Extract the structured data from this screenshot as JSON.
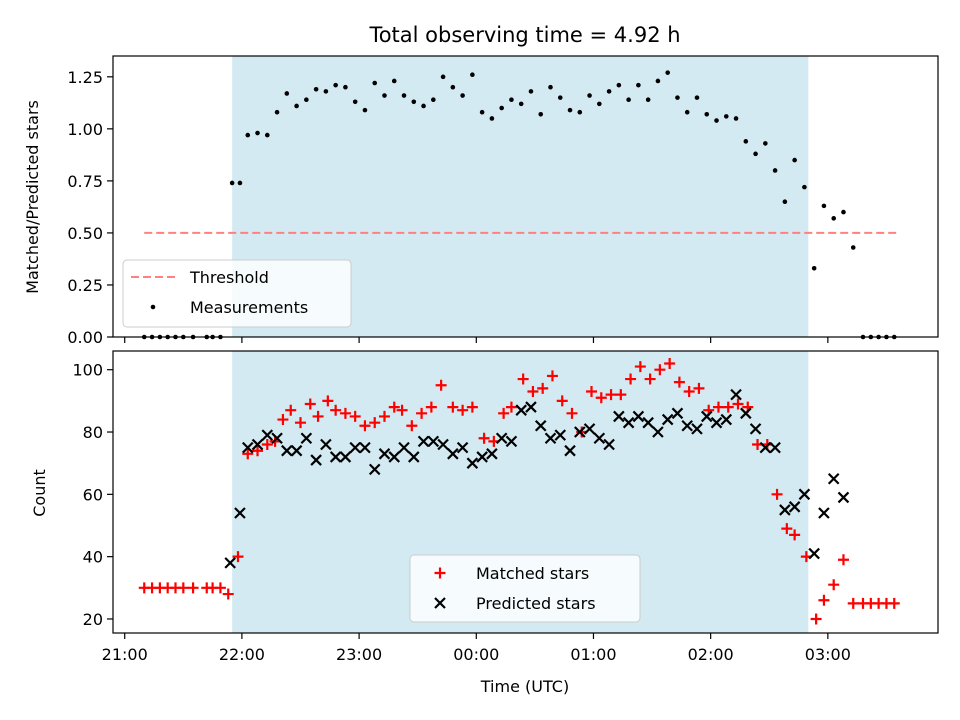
{
  "chart_data": [
    {
      "type": "scatter",
      "title": "Total observing time = 4.92 h",
      "xlabel": "",
      "ylabel": "Matched/Predicted stars",
      "ylim": [
        0,
        1.35
      ],
      "yticks": [
        "0.00",
        "0.25",
        "0.50",
        "0.75",
        "1.00",
        "1.25"
      ],
      "observing_window": [
        "21:55",
        "02:50"
      ],
      "shade_color": "#d3eaf2",
      "legend_position": "lower left",
      "threshold": {
        "name": "Threshold",
        "value": 0.5,
        "x_start": "21:10",
        "x_end": "03:35",
        "color": "#ff8080"
      },
      "series": [
        {
          "name": "Measurements",
          "color": "#000000",
          "points": [
            [
              "21:10",
              0.0
            ],
            [
              "21:14",
              0.0
            ],
            [
              "21:18",
              0.0
            ],
            [
              "21:22",
              0.0
            ],
            [
              "21:26",
              0.0
            ],
            [
              "21:30",
              0.0
            ],
            [
              "21:35",
              0.0
            ],
            [
              "21:42",
              0.0
            ],
            [
              "21:45",
              0.0
            ],
            [
              "21:49",
              0.0
            ],
            [
              "21:55",
              0.74
            ],
            [
              "21:59",
              0.74
            ],
            [
              "22:03",
              0.97
            ],
            [
              "22:08",
              0.98
            ],
            [
              "22:13",
              0.97
            ],
            [
              "22:18",
              1.08
            ],
            [
              "22:23",
              1.17
            ],
            [
              "22:28",
              1.11
            ],
            [
              "22:33",
              1.14
            ],
            [
              "22:38",
              1.19
            ],
            [
              "22:43",
              1.18
            ],
            [
              "22:48",
              1.21
            ],
            [
              "22:53",
              1.2
            ],
            [
              "22:58",
              1.13
            ],
            [
              "23:03",
              1.09
            ],
            [
              "23:08",
              1.22
            ],
            [
              "23:13",
              1.16
            ],
            [
              "23:18",
              1.23
            ],
            [
              "23:23",
              1.16
            ],
            [
              "23:28",
              1.13
            ],
            [
              "23:33",
              1.11
            ],
            [
              "23:38",
              1.14
            ],
            [
              "23:43",
              1.25
            ],
            [
              "23:48",
              1.2
            ],
            [
              "23:53",
              1.16
            ],
            [
              "23:58",
              1.26
            ],
            [
              "00:03",
              1.08
            ],
            [
              "00:08",
              1.05
            ],
            [
              "00:13",
              1.1
            ],
            [
              "00:18",
              1.14
            ],
            [
              "00:23",
              1.12
            ],
            [
              "00:28",
              1.18
            ],
            [
              "00:33",
              1.07
            ],
            [
              "00:38",
              1.2
            ],
            [
              "00:43",
              1.15
            ],
            [
              "00:48",
              1.09
            ],
            [
              "00:53",
              1.08
            ],
            [
              "00:58",
              1.16
            ],
            [
              "01:03",
              1.12
            ],
            [
              "01:08",
              1.18
            ],
            [
              "01:13",
              1.21
            ],
            [
              "01:18",
              1.14
            ],
            [
              "01:23",
              1.21
            ],
            [
              "01:28",
              1.14
            ],
            [
              "01:33",
              1.23
            ],
            [
              "01:38",
              1.27
            ],
            [
              "01:43",
              1.15
            ],
            [
              "01:48",
              1.08
            ],
            [
              "01:53",
              1.15
            ],
            [
              "01:58",
              1.07
            ],
            [
              "02:03",
              1.04
            ],
            [
              "02:08",
              1.06
            ],
            [
              "02:13",
              1.05
            ],
            [
              "02:18",
              0.94
            ],
            [
              "02:23",
              0.88
            ],
            [
              "02:28",
              0.93
            ],
            [
              "02:33",
              0.8
            ],
            [
              "02:38",
              0.65
            ],
            [
              "02:43",
              0.85
            ],
            [
              "02:48",
              0.72
            ],
            [
              "02:53",
              0.33
            ],
            [
              "02:58",
              0.63
            ],
            [
              "03:03",
              0.57
            ],
            [
              "03:08",
              0.6
            ],
            [
              "03:13",
              0.43
            ],
            [
              "03:18",
              0.0
            ],
            [
              "03:22",
              0.0
            ],
            [
              "03:26",
              0.0
            ],
            [
              "03:30",
              0.0
            ],
            [
              "03:34",
              0.0
            ]
          ]
        }
      ]
    },
    {
      "type": "scatter",
      "title": "",
      "xlabel": "Time (UTC)",
      "ylabel": "Count",
      "ylim": [
        15.5,
        106
      ],
      "yticks": [
        "20",
        "40",
        "60",
        "80",
        "100"
      ],
      "xticks": [
        "21:00",
        "22:00",
        "23:00",
        "00:00",
        "01:00",
        "02:00",
        "03:00"
      ],
      "observing_window": [
        "21:55",
        "02:50"
      ],
      "shade_color": "#d3eaf2",
      "legend_position": "lower center",
      "series": [
        {
          "name": "Matched stars",
          "marker": "plus",
          "color": "#ff0000",
          "points": [
            [
              "21:10",
              30
            ],
            [
              "21:14",
              30
            ],
            [
              "21:18",
              30
            ],
            [
              "21:22",
              30
            ],
            [
              "21:26",
              30
            ],
            [
              "21:30",
              30
            ],
            [
              "21:35",
              30
            ],
            [
              "21:42",
              30
            ],
            [
              "21:45",
              30
            ],
            [
              "21:49",
              30
            ],
            [
              "21:53",
              28
            ],
            [
              "21:58",
              40
            ],
            [
              "22:03",
              73
            ],
            [
              "22:08",
              74
            ],
            [
              "22:13",
              76
            ],
            [
              "22:17",
              77
            ],
            [
              "22:21",
              84
            ],
            [
              "22:25",
              87
            ],
            [
              "22:30",
              83
            ],
            [
              "22:35",
              89
            ],
            [
              "22:39",
              85
            ],
            [
              "22:44",
              90
            ],
            [
              "22:48",
              87
            ],
            [
              "22:53",
              86
            ],
            [
              "22:58",
              85
            ],
            [
              "23:03",
              82
            ],
            [
              "23:08",
              83
            ],
            [
              "23:13",
              85
            ],
            [
              "23:18",
              88
            ],
            [
              "23:22",
              87
            ],
            [
              "23:27",
              82
            ],
            [
              "23:32",
              86
            ],
            [
              "23:37",
              88
            ],
            [
              "23:42",
              95
            ],
            [
              "23:48",
              88
            ],
            [
              "23:53",
              87
            ],
            [
              "23:58",
              88
            ],
            [
              "00:04",
              78
            ],
            [
              "00:09",
              77
            ],
            [
              "00:14",
              86
            ],
            [
              "00:18",
              88
            ],
            [
              "00:24",
              97
            ],
            [
              "00:29",
              93
            ],
            [
              "00:34",
              94
            ],
            [
              "00:39",
              98
            ],
            [
              "00:44",
              90
            ],
            [
              "00:49",
              86
            ],
            [
              "00:54",
              80
            ],
            [
              "00:59",
              93
            ],
            [
              "01:04",
              91
            ],
            [
              "01:09",
              92
            ],
            [
              "01:14",
              92
            ],
            [
              "01:19",
              97
            ],
            [
              "01:24",
              101
            ],
            [
              "01:29",
              97
            ],
            [
              "01:34",
              100
            ],
            [
              "01:39",
              102
            ],
            [
              "01:44",
              96
            ],
            [
              "01:49",
              93
            ],
            [
              "01:54",
              94
            ],
            [
              "01:59",
              87
            ],
            [
              "02:04",
              88
            ],
            [
              "02:09",
              88
            ],
            [
              "02:14",
              89
            ],
            [
              "02:19",
              88
            ],
            [
              "02:24",
              76
            ],
            [
              "02:29",
              76
            ],
            [
              "02:34",
              60
            ],
            [
              "02:39",
              49
            ],
            [
              "02:43",
              47
            ],
            [
              "02:49",
              40
            ],
            [
              "02:54",
              20
            ],
            [
              "02:58",
              26
            ],
            [
              "03:03",
              31
            ],
            [
              "03:08",
              39
            ],
            [
              "03:13",
              25
            ],
            [
              "03:18",
              25
            ],
            [
              "03:22",
              25
            ],
            [
              "03:26",
              25
            ],
            [
              "03:30",
              25
            ],
            [
              "03:34",
              25
            ]
          ]
        },
        {
          "name": "Predicted stars",
          "marker": "x",
          "color": "#000000",
          "points": [
            [
              "21:54",
              38
            ],
            [
              "21:59",
              54
            ],
            [
              "22:03",
              75
            ],
            [
              "22:08",
              76
            ],
            [
              "22:13",
              79
            ],
            [
              "22:18",
              78
            ],
            [
              "22:23",
              74
            ],
            [
              "22:28",
              74
            ],
            [
              "22:33",
              78
            ],
            [
              "22:38",
              71
            ],
            [
              "22:43",
              76
            ],
            [
              "22:48",
              72
            ],
            [
              "22:53",
              72
            ],
            [
              "22:58",
              75
            ],
            [
              "23:03",
              75
            ],
            [
              "23:08",
              68
            ],
            [
              "23:13",
              73
            ],
            [
              "23:18",
              72
            ],
            [
              "23:23",
              75
            ],
            [
              "23:28",
              72
            ],
            [
              "23:33",
              77
            ],
            [
              "23:38",
              77
            ],
            [
              "23:43",
              76
            ],
            [
              "23:48",
              73
            ],
            [
              "23:53",
              75
            ],
            [
              "23:58",
              70
            ],
            [
              "00:03",
              72
            ],
            [
              "00:08",
              73
            ],
            [
              "00:13",
              78
            ],
            [
              "00:18",
              77
            ],
            [
              "00:23",
              87
            ],
            [
              "00:28",
              88
            ],
            [
              "00:33",
              82
            ],
            [
              "00:38",
              78
            ],
            [
              "00:43",
              79
            ],
            [
              "00:48",
              74
            ],
            [
              "00:53",
              80
            ],
            [
              "00:58",
              81
            ],
            [
              "01:03",
              78
            ],
            [
              "01:08",
              76
            ],
            [
              "01:13",
              85
            ],
            [
              "01:18",
              83
            ],
            [
              "01:23",
              85
            ],
            [
              "01:28",
              83
            ],
            [
              "01:33",
              80
            ],
            [
              "01:38",
              84
            ],
            [
              "01:43",
              86
            ],
            [
              "01:48",
              82
            ],
            [
              "01:53",
              81
            ],
            [
              "01:58",
              85
            ],
            [
              "02:03",
              83
            ],
            [
              "02:08",
              84
            ],
            [
              "02:13",
              92
            ],
            [
              "02:18",
              86
            ],
            [
              "02:23",
              81
            ],
            [
              "02:28",
              75
            ],
            [
              "02:33",
              75
            ],
            [
              "02:38",
              55
            ],
            [
              "02:43",
              56
            ],
            [
              "02:48",
              60
            ],
            [
              "02:53",
              41
            ],
            [
              "02:58",
              54
            ],
            [
              "03:03",
              65
            ],
            [
              "03:08",
              59
            ]
          ]
        }
      ]
    }
  ]
}
